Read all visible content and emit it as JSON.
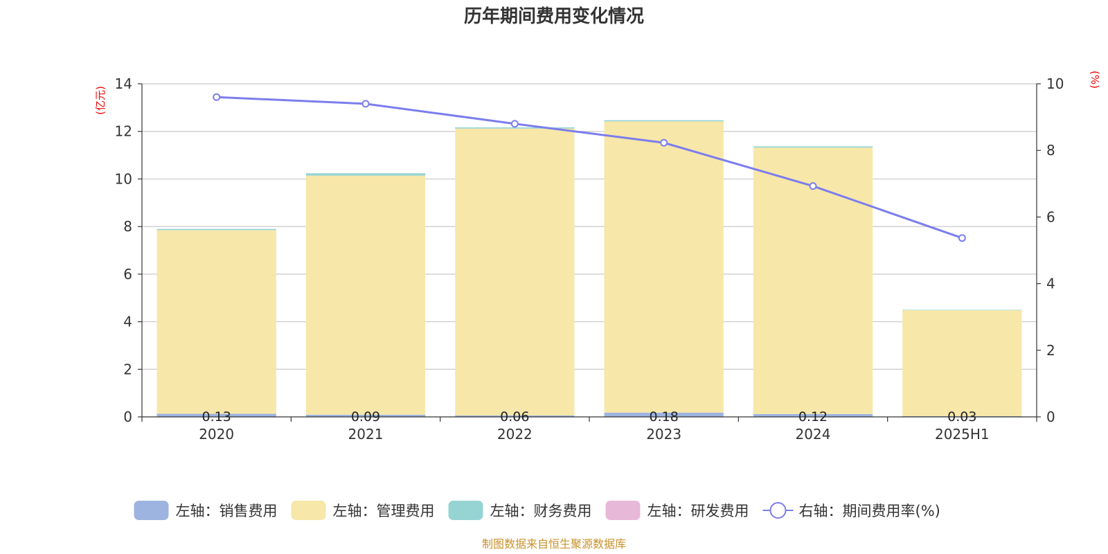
{
  "chart_data": {
    "type": "bar",
    "stacked": true,
    "title": "历年期间费用变化情况",
    "categories": [
      "2020",
      "2021",
      "2022",
      "2023",
      "2024",
      "2025H1"
    ],
    "left_axis": {
      "unit": "(亿元)",
      "ylim": [
        0,
        14
      ],
      "ticks": [
        "0",
        "2",
        "4",
        "6",
        "8",
        "10",
        "12",
        "14"
      ]
    },
    "right_axis": {
      "unit": "(%)",
      "ylim": [
        0,
        10
      ],
      "ticks": [
        "0",
        "2",
        "4",
        "6",
        "8",
        "10"
      ]
    },
    "series": [
      {
        "name": "左轴：销售费用",
        "type": "bar",
        "axis": "left",
        "color": "#9db4e0",
        "values": [
          0.13,
          0.09,
          0.06,
          0.18,
          0.12,
          0.03
        ],
        "labels": [
          "0.13",
          "0.09",
          "0.06",
          "0.18",
          "0.12",
          "0.03"
        ]
      },
      {
        "name": "左轴：管理费用",
        "type": "bar",
        "axis": "left",
        "color": "#f7e7a9",
        "values": [
          7.72,
          10.05,
          12.06,
          12.24,
          11.2,
          4.45
        ]
      },
      {
        "name": "左轴：财务费用",
        "type": "bar",
        "axis": "left",
        "color": "#96d4d4",
        "values": [
          0.05,
          0.1,
          0.05,
          0.05,
          0.05,
          0.02
        ]
      },
      {
        "name": "左轴：研发费用",
        "type": "bar",
        "axis": "left",
        "color": "#e8b8d8",
        "values": [
          0,
          0,
          0,
          0,
          0,
          0
        ]
      },
      {
        "name": "右轴：期间费用率(%)",
        "type": "line",
        "axis": "right",
        "color": "#7b7ded",
        "values": [
          9.6,
          9.4,
          8.8,
          8.23,
          6.93,
          5.37
        ]
      }
    ],
    "grid": true,
    "legend_position": "bottom"
  },
  "footer": {
    "source": "制图数据来自恒生聚源数据库"
  }
}
